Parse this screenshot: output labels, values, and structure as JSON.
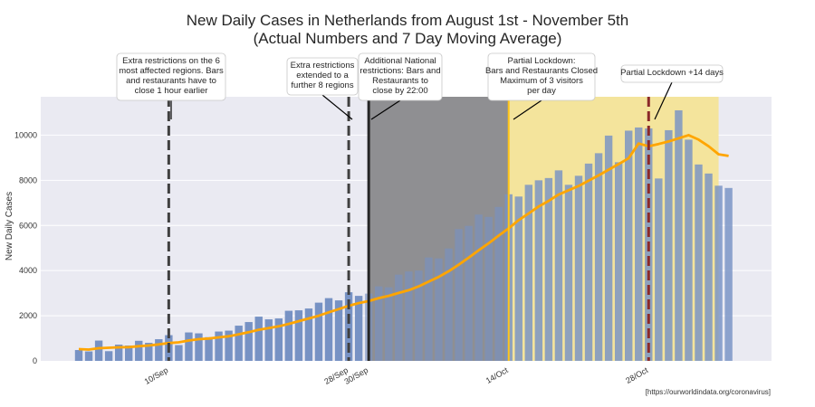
{
  "chart_data": {
    "type": "bar",
    "title": "New Daily Cases in Netherlands from August 1st - November 5th",
    "subtitle": "(Actual Numbers and 7 Day Moving Average)",
    "ylabel": "New Daily Cases",
    "xlabel": "",
    "source": "[https://ourworldindata.org/coronavirus]",
    "ylim": [
      0,
      11700
    ],
    "y_ticks": [
      0,
      2000,
      4000,
      6000,
      8000,
      10000
    ],
    "grid": true,
    "x_ticks": [
      {
        "label": "10/Sep",
        "index": 9
      },
      {
        "label": "28/Sep",
        "index": 27
      },
      {
        "label": "30/Sep",
        "index": 29
      },
      {
        "label": "14/Oct",
        "index": 43
      },
      {
        "label": "28/Oct",
        "index": 57
      }
    ],
    "series": [
      {
        "kind": "bar",
        "values": [
          480,
          420,
          900,
          430,
          720,
          680,
          890,
          800,
          960,
          1140,
          700,
          1260,
          1220,
          1050,
          1300,
          1340,
          1560,
          1720,
          1960,
          1840,
          1880,
          2220,
          2240,
          2320,
          2580,
          2780,
          2680,
          3040,
          2880,
          2980,
          3300,
          3260,
          3820,
          3960,
          4000,
          4580,
          4540,
          4980,
          5840,
          5980,
          6480,
          6380,
          6820,
          7380,
          7280,
          7800,
          8000,
          8100,
          8440,
          7800,
          8200,
          8740,
          9200,
          9980,
          8800,
          10200,
          10340,
          10300,
          8080,
          10220,
          11100,
          9800,
          8700,
          8300,
          7760,
          7660
        ]
      },
      {
        "kind": "line",
        "name": "7 Day Moving Average",
        "values": [
          520,
          500,
          560,
          580,
          600,
          610,
          650,
          680,
          730,
          790,
          820,
          900,
          960,
          990,
          1040,
          1090,
          1180,
          1270,
          1380,
          1450,
          1530,
          1640,
          1760,
          1880,
          2000,
          2150,
          2290,
          2440,
          2560,
          2650,
          2780,
          2880,
          3010,
          3130,
          3300,
          3510,
          3720,
          3970,
          4260,
          4570,
          4900,
          5210,
          5550,
          5870,
          6240,
          6530,
          6840,
          7090,
          7370,
          7560,
          7750,
          7980,
          8220,
          8470,
          8720,
          8980,
          9630,
          9510,
          9610,
          9720,
          9860,
          10000,
          9800,
          9510,
          9150,
          9080
        ]
      }
    ],
    "colors": {
      "bar": "#7792c4",
      "line": "#ffa500",
      "plot_bg": "#eaeaf2",
      "grey_span": "#8f8f92",
      "yellow_span": "#f4e49c",
      "yellow_edge": "#ffc51a",
      "dash": "#404040",
      "solid": "#262626",
      "red_dash": "#8b2a2a"
    },
    "spans": [
      {
        "from": 29,
        "to": 43,
        "color_key": "grey_span"
      },
      {
        "from": 43,
        "to": 64,
        "color_key": "yellow_span"
      }
    ],
    "vlines": [
      {
        "at": 9,
        "style": "dashed",
        "color_key": "dash"
      },
      {
        "at": 27,
        "style": "dashed",
        "color_key": "dash"
      },
      {
        "at": 29,
        "style": "solid",
        "color_key": "solid"
      },
      {
        "at": 43,
        "style": "solid",
        "color_key": "yellow_edge"
      },
      {
        "at": 57,
        "style": "dashed",
        "color_key": "red_dash"
      }
    ],
    "annotations": [
      {
        "lines": [
          "Extra restrictions on the 6",
          "most affected regions. Bars",
          "and restaurants have to",
          "close 1 hour earlier"
        ],
        "target": 9
      },
      {
        "lines": [
          "Extra restrictions",
          "extended to a",
          "further 8 regions"
        ],
        "target": 27
      },
      {
        "lines": [
          "Additional National",
          "restrictions: Bars and",
          "Restaurants to",
          "close by 22:00"
        ],
        "target": 29
      },
      {
        "lines": [
          "Partial Lockdown:",
          "Bars and Restaurants Closed",
          "Maximum of 3 visitors",
          "per day"
        ],
        "target": 43
      },
      {
        "lines": [
          "Partial Lockdown +14 days"
        ],
        "target": 57
      }
    ]
  }
}
